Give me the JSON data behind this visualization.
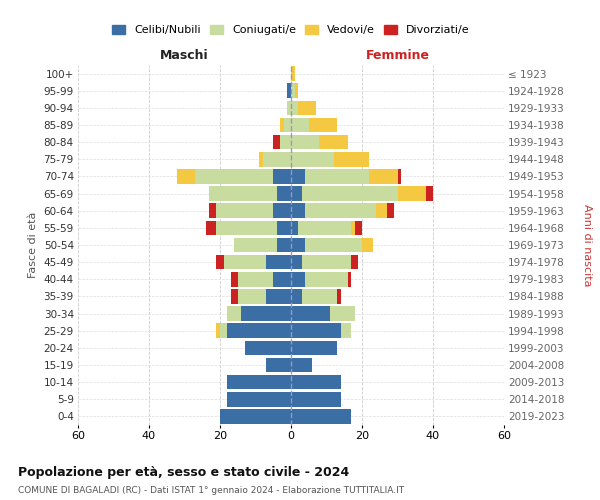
{
  "age_groups": [
    "0-4",
    "5-9",
    "10-14",
    "15-19",
    "20-24",
    "25-29",
    "30-34",
    "35-39",
    "40-44",
    "45-49",
    "50-54",
    "55-59",
    "60-64",
    "65-69",
    "70-74",
    "75-79",
    "80-84",
    "85-89",
    "90-94",
    "95-99",
    "100+"
  ],
  "birth_years": [
    "2019-2023",
    "2014-2018",
    "2009-2013",
    "2004-2008",
    "1999-2003",
    "1994-1998",
    "1989-1993",
    "1984-1988",
    "1979-1983",
    "1974-1978",
    "1969-1973",
    "1964-1968",
    "1959-1963",
    "1954-1958",
    "1949-1953",
    "1944-1948",
    "1939-1943",
    "1934-1938",
    "1929-1933",
    "1924-1928",
    "≤ 1923"
  ],
  "males": {
    "celibi": [
      20,
      18,
      18,
      7,
      13,
      18,
      14,
      7,
      5,
      7,
      4,
      4,
      5,
      4,
      5,
      0,
      0,
      0,
      0,
      1,
      0
    ],
    "coniugati": [
      0,
      0,
      0,
      0,
      0,
      2,
      4,
      8,
      10,
      12,
      12,
      17,
      16,
      19,
      22,
      8,
      3,
      2,
      1,
      0,
      0
    ],
    "vedovi": [
      0,
      0,
      0,
      0,
      0,
      1,
      0,
      0,
      0,
      0,
      0,
      0,
      0,
      0,
      5,
      1,
      0,
      1,
      0,
      0,
      0
    ],
    "divorziati": [
      0,
      0,
      0,
      0,
      0,
      0,
      0,
      2,
      2,
      2,
      0,
      3,
      2,
      0,
      0,
      0,
      2,
      0,
      0,
      0,
      0
    ]
  },
  "females": {
    "nubili": [
      17,
      14,
      14,
      6,
      13,
      14,
      11,
      3,
      4,
      3,
      4,
      2,
      4,
      3,
      4,
      0,
      0,
      0,
      0,
      0,
      0
    ],
    "coniugate": [
      0,
      0,
      0,
      0,
      0,
      3,
      7,
      10,
      12,
      14,
      16,
      15,
      20,
      27,
      18,
      12,
      8,
      5,
      2,
      1,
      0
    ],
    "vedove": [
      0,
      0,
      0,
      0,
      0,
      0,
      0,
      0,
      0,
      0,
      3,
      1,
      3,
      8,
      8,
      10,
      8,
      8,
      5,
      1,
      1
    ],
    "divorziate": [
      0,
      0,
      0,
      0,
      0,
      0,
      0,
      1,
      1,
      2,
      0,
      2,
      2,
      2,
      1,
      0,
      0,
      0,
      0,
      0,
      0
    ]
  },
  "color_celibi": "#3a6ea5",
  "color_coniugati": "#c8dca0",
  "color_vedovi": "#f5c842",
  "color_divorziati": "#cc2222",
  "xlim": 60,
  "title": "Popolazione per età, sesso e stato civile - 2024",
  "subtitle": "COMUNE DI BAGALADI (RC) - Dati ISTAT 1° gennaio 2024 - Elaborazione TUTTITALIA.IT",
  "ylabel_left": "Fasce di età",
  "ylabel_right": "Anni di nascita",
  "xlabel_left": "Maschi",
  "xlabel_right": "Femmine",
  "bar_height": 0.85
}
